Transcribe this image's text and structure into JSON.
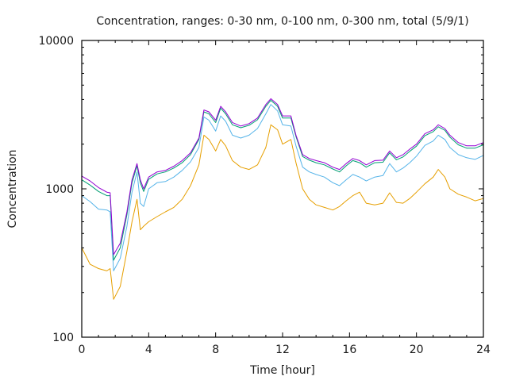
{
  "chart_data": {
    "type": "line",
    "title": "Concentration, ranges: 0-30 nm, 0-100 nm, 0-300 nm, total (5/9/1)",
    "xlabel": "Time [hour]",
    "ylabel": "Concentration",
    "xlim": [
      0,
      24
    ],
    "ylim": [
      100,
      10000
    ],
    "yscale": "log",
    "xticks": [
      0,
      4,
      8,
      12,
      16,
      20,
      24
    ],
    "xtick_labels": [
      "0",
      "4",
      "8",
      "12",
      "16",
      "20",
      "24"
    ],
    "yticks": [
      100,
      1000,
      10000
    ],
    "ytick_labels": [
      "100",
      "1000",
      "10000"
    ],
    "grid": false,
    "legend": "none",
    "x": [
      0,
      0.5,
      1,
      1.5,
      1.7,
      1.9,
      2.3,
      2.7,
      3.0,
      3.3,
      3.5,
      3.7,
      4.0,
      4.5,
      5.0,
      5.5,
      6.0,
      6.5,
      7.0,
      7.3,
      7.6,
      8.0,
      8.3,
      8.6,
      9.0,
      9.5,
      10.0,
      10.5,
      11.0,
      11.3,
      11.7,
      12.0,
      12.5,
      12.8,
      13.2,
      13.6,
      14.0,
      14.5,
      15.0,
      15.4,
      15.8,
      16.2,
      16.6,
      17.0,
      17.5,
      18.0,
      18.4,
      18.8,
      19.2,
      19.6,
      20.0,
      20.5,
      21.0,
      21.3,
      21.7,
      22.0,
      22.5,
      23.0,
      23.5,
      24.0
    ],
    "series": [
      {
        "name": "total",
        "color": "#9400d3",
        "values": [
          1220,
          1130,
          1020,
          950,
          940,
          360,
          430,
          700,
          1150,
          1480,
          1150,
          1000,
          1200,
          1300,
          1330,
          1420,
          1550,
          1750,
          2200,
          3400,
          3300,
          2900,
          3600,
          3300,
          2800,
          2650,
          2750,
          3000,
          3700,
          4050,
          3700,
          3100,
          3100,
          2300,
          1700,
          1600,
          1550,
          1500,
          1400,
          1350,
          1480,
          1600,
          1550,
          1450,
          1550,
          1560,
          1800,
          1620,
          1700,
          1850,
          2000,
          2350,
          2500,
          2700,
          2550,
          2300,
          2050,
          1950,
          1950,
          2050
        ]
      },
      {
        "name": "0-300 nm",
        "color": "#009e73",
        "values": [
          1150,
          1060,
          960,
          900,
          900,
          330,
          400,
          670,
          1100,
          1430,
          1100,
          960,
          1160,
          1260,
          1300,
          1380,
          1500,
          1700,
          2150,
          3300,
          3200,
          2800,
          3500,
          3200,
          2700,
          2580,
          2680,
          2920,
          3600,
          3950,
          3600,
          3000,
          3000,
          2250,
          1650,
          1560,
          1500,
          1450,
          1360,
          1300,
          1430,
          1550,
          1500,
          1400,
          1500,
          1510,
          1750,
          1570,
          1640,
          1790,
          1940,
          2280,
          2430,
          2620,
          2480,
          2230,
          1980,
          1880,
          1880,
          1980
        ]
      },
      {
        "name": "0-100 nm",
        "color": "#56b4e9",
        "values": [
          900,
          820,
          730,
          720,
          700,
          280,
          340,
          560,
          950,
          1300,
          800,
          760,
          1000,
          1100,
          1120,
          1200,
          1330,
          1520,
          1900,
          3050,
          2900,
          2450,
          3100,
          2850,
          2300,
          2200,
          2300,
          2550,
          3200,
          3700,
          3350,
          2700,
          2650,
          1950,
          1400,
          1300,
          1250,
          1200,
          1100,
          1050,
          1150,
          1250,
          1200,
          1130,
          1200,
          1230,
          1480,
          1300,
          1380,
          1500,
          1660,
          1960,
          2100,
          2300,
          2150,
          1900,
          1700,
          1620,
          1580,
          1680
        ]
      },
      {
        "name": "0-30 nm",
        "color": "#e69f00",
        "values": [
          400,
          310,
          290,
          280,
          290,
          180,
          220,
          380,
          600,
          850,
          530,
          560,
          600,
          650,
          700,
          750,
          850,
          1050,
          1450,
          2300,
          2150,
          1800,
          2150,
          1950,
          1550,
          1400,
          1350,
          1450,
          1900,
          2700,
          2500,
          2000,
          2150,
          1500,
          1000,
          850,
          780,
          750,
          720,
          760,
          830,
          900,
          950,
          800,
          780,
          800,
          940,
          810,
          800,
          860,
          950,
          1080,
          1200,
          1350,
          1200,
          1000,
          920,
          880,
          830,
          860
        ]
      }
    ]
  }
}
